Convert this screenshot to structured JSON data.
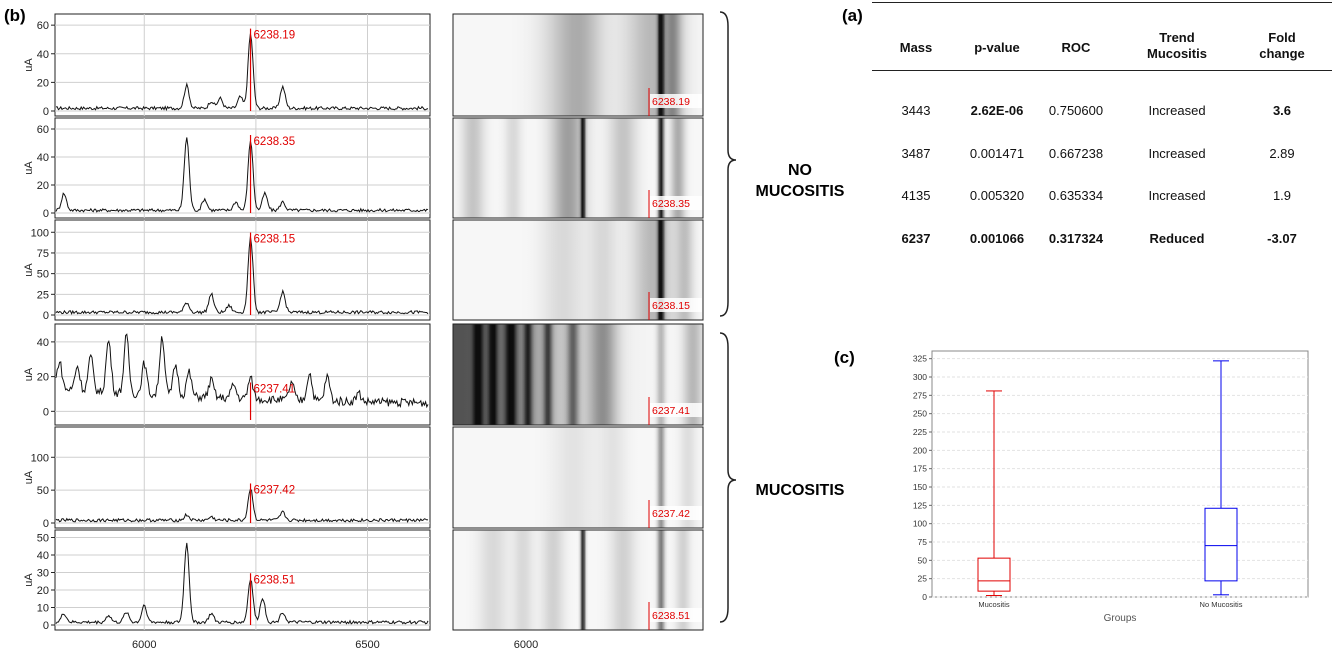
{
  "labels": {
    "panel_b": "(b)",
    "panel_a": "(a)",
    "panel_c": "(c)"
  },
  "groups": {
    "no_mucositis": [
      "NO",
      "MUCOSITIS"
    ],
    "mucositis": "MUCOSITIS"
  },
  "colors": {
    "peak_marker": "#e00000",
    "mucositis_box": "#e00000",
    "no_mucositis_box": "#0000ee"
  },
  "table": {
    "headers": [
      "Mass",
      "p-value",
      "ROC",
      "Trend Mucositis",
      "Fold change"
    ],
    "header_lines": [
      [
        "Mass"
      ],
      [
        "p-value"
      ],
      [
        "ROC"
      ],
      [
        "Trend",
        "Mucositis"
      ],
      [
        "Fold",
        "change"
      ]
    ],
    "rows": [
      {
        "cells": [
          "3443",
          "2.62E-06",
          "0.750600",
          "Increased",
          "3.6"
        ],
        "bold": [
          false,
          true,
          false,
          false,
          true
        ]
      },
      {
        "cells": [
          "3487",
          "0.001471",
          "0.667238",
          "Increased",
          "2.89"
        ],
        "bold": [
          false,
          false,
          false,
          false,
          false
        ]
      },
      {
        "cells": [
          "4135",
          "0.005320",
          "0.635334",
          "Increased",
          "1.9"
        ],
        "bold": [
          false,
          false,
          false,
          false,
          false
        ]
      },
      {
        "cells": [
          "6237",
          "0.001066",
          "0.317324",
          "Reduced",
          "-3.07"
        ],
        "bold": [
          true,
          true,
          true,
          true,
          true
        ]
      }
    ]
  },
  "chart_data": [
    {
      "type": "line",
      "panel": "b",
      "description_x_ticks": [
        "6000",
        "6500"
      ],
      "xlim": [
        5800,
        6640
      ],
      "ylabel": "uA",
      "spectra": [
        {
          "group": "NO MUCOSITIS",
          "peak_label": "6238.19",
          "ylim": [
            0,
            65
          ],
          "yticks": [
            0,
            20,
            40,
            60
          ],
          "peaks": [
            [
              6095,
              16
            ],
            [
              6150,
              5
            ],
            [
              6170,
              7
            ],
            [
              6215,
              8
            ],
            [
              6238,
              52
            ],
            [
              6310,
              15
            ]
          ]
        },
        {
          "group": "NO MUCOSITIS",
          "peak_label": "6238.35",
          "ylim": [
            0,
            65
          ],
          "yticks": [
            0,
            20,
            40,
            60
          ],
          "peaks": [
            [
              5820,
              12
            ],
            [
              6095,
              52
            ],
            [
              6135,
              8
            ],
            [
              6205,
              6
            ],
            [
              6238,
              50
            ],
            [
              6270,
              12
            ],
            [
              6310,
              6
            ]
          ]
        },
        {
          "group": "NO MUCOSITIS",
          "peak_label": "6238.15",
          "ylim": [
            0,
            110
          ],
          "yticks": [
            0,
            25,
            50,
            75,
            100
          ],
          "peaks": [
            [
              6095,
              12
            ],
            [
              6150,
              22
            ],
            [
              6190,
              8
            ],
            [
              6238,
              90
            ],
            [
              6310,
              25
            ]
          ]
        },
        {
          "group": "MUCOSITIS",
          "peak_label": "6237.41",
          "ylim": [
            -5,
            48
          ],
          "yticks": [
            0,
            20,
            40
          ],
          "peaks": [
            [
              5810,
              16
            ],
            [
              5850,
              14
            ],
            [
              5880,
              20
            ],
            [
              5920,
              30
            ],
            [
              5960,
              33
            ],
            [
              6000,
              18
            ],
            [
              6040,
              34
            ],
            [
              6070,
              18
            ],
            [
              6100,
              14
            ],
            [
              6150,
              10
            ],
            [
              6200,
              8
            ],
            [
              6238,
              12
            ],
            [
              6330,
              10
            ],
            [
              6370,
              16
            ],
            [
              6410,
              14
            ],
            [
              6480,
              5
            ]
          ]
        },
        {
          "group": "MUCOSITIS",
          "peak_label": "6237.42",
          "ylim": [
            0,
            140
          ],
          "yticks": [
            0,
            50,
            100
          ],
          "peaks": [
            [
              6095,
              8
            ],
            [
              6150,
              5
            ],
            [
              6238,
              48
            ],
            [
              6310,
              12
            ]
          ]
        },
        {
          "group": "MUCOSITIS",
          "peak_label": "6238.51",
          "ylim": [
            0,
            52
          ],
          "yticks": [
            0,
            10,
            20,
            30,
            40,
            50
          ],
          "peaks": [
            [
              5820,
              5
            ],
            [
              5920,
              4
            ],
            [
              5960,
              6
            ],
            [
              6000,
              10
            ],
            [
              6095,
              45
            ],
            [
              6150,
              5
            ],
            [
              6238,
              25
            ],
            [
              6265,
              14
            ],
            [
              6310,
              6
            ]
          ]
        }
      ]
    },
    {
      "type": "heatmap",
      "panel": "b",
      "description_x_ticks": [
        "6000"
      ],
      "gel_labels": [
        "6238.19",
        "6238.35",
        "6238.15",
        "6237.41",
        "6237.42",
        "6238.51"
      ]
    },
    {
      "type": "box",
      "panel": "c",
      "xlabel": "Groups",
      "categories": [
        "Mucositis",
        "No Mucositis"
      ],
      "ylim": [
        0,
        330
      ],
      "yticks": [
        0,
        25,
        50,
        75,
        100,
        125,
        150,
        175,
        200,
        225,
        250,
        275,
        300,
        325
      ],
      "series": [
        {
          "name": "Mucositis",
          "min": 2,
          "q1": 8,
          "median": 22,
          "q3": 53,
          "max": 281
        },
        {
          "name": "No Mucositis",
          "min": 3,
          "q1": 22,
          "median": 70,
          "q3": 121,
          "max": 322
        }
      ]
    }
  ]
}
